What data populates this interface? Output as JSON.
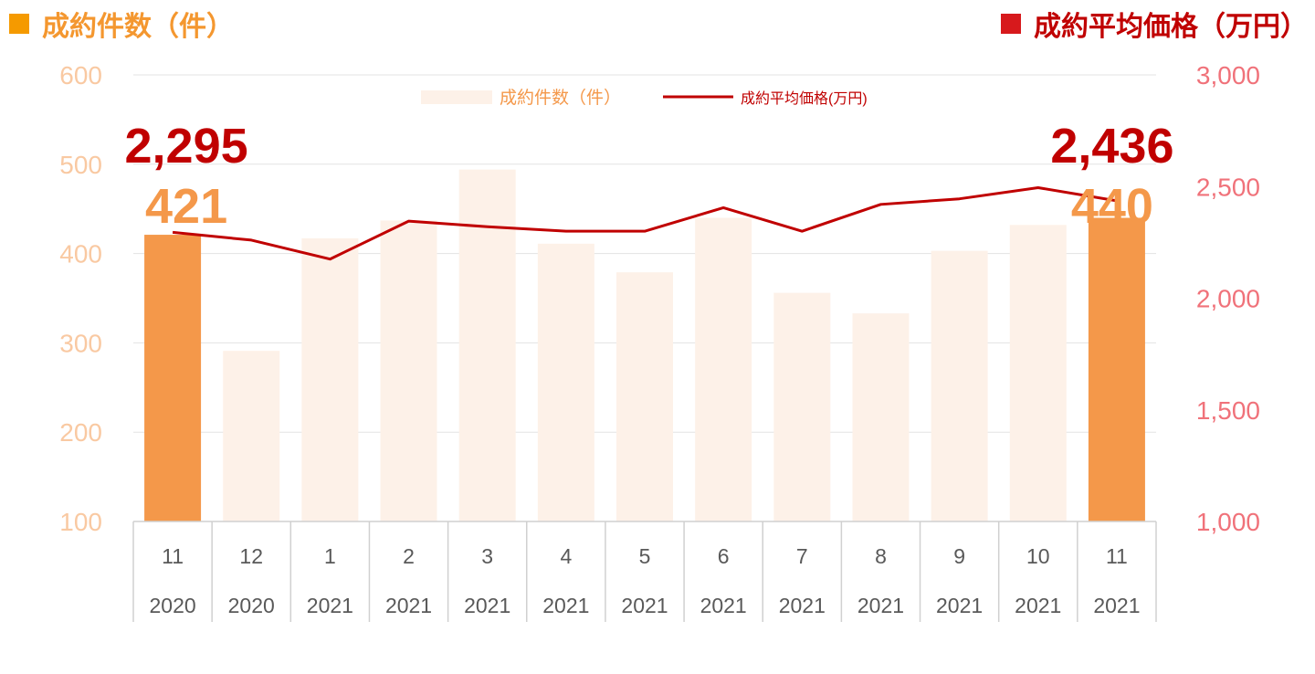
{
  "header": {
    "left_title": "成約件数（件）",
    "right_title": "成約平均価格（万円）"
  },
  "legend": {
    "bar_label": "成約件数（件）",
    "line_label": "成約平均価格(万円)"
  },
  "colors": {
    "highlight_bar": "#F4984A",
    "faded_bar": "#FDF1E8",
    "line": "#C00000",
    "left_axis": "#F9C9A2",
    "right_axis": "#F0727A",
    "highlight_count_label": "#F4984A",
    "highlight_price_label": "#C00000",
    "legend_bar_text": "#F4984A",
    "legend_line_text": "#C00000"
  },
  "chart_data": {
    "type": "bar",
    "categories": [
      [
        "11",
        "2020"
      ],
      [
        "12",
        "2020"
      ],
      [
        "1",
        "2021"
      ],
      [
        "2",
        "2021"
      ],
      [
        "3",
        "2021"
      ],
      [
        "4",
        "2021"
      ],
      [
        "5",
        "2021"
      ],
      [
        "6",
        "2021"
      ],
      [
        "7",
        "2021"
      ],
      [
        "8",
        "2021"
      ],
      [
        "9",
        "2021"
      ],
      [
        "10",
        "2021"
      ],
      [
        "11",
        "2021"
      ]
    ],
    "series": [
      {
        "name": "成約件数（件）",
        "type": "bar",
        "axis": "left",
        "values": [
          421,
          291,
          417,
          437,
          494,
          411,
          379,
          440,
          356,
          333,
          403,
          432,
          440
        ]
      },
      {
        "name": "成約平均価格(万円)",
        "type": "line",
        "axis": "right",
        "values": [
          2295,
          2260,
          2175,
          2345,
          2320,
          2300,
          2300,
          2405,
          2300,
          2420,
          2445,
          2495,
          2436
        ]
      }
    ],
    "highlighted_indices": [
      0,
      12
    ],
    "data_labels": [
      {
        "index": 0,
        "count": "421",
        "price": "2,295"
      },
      {
        "index": 12,
        "count": "440",
        "price": "2,436"
      }
    ],
    "left_axis": {
      "ylim": [
        100,
        600
      ],
      "ticks": [
        "100",
        "200",
        "300",
        "400",
        "500",
        "600"
      ]
    },
    "right_axis": {
      "ylim": [
        1000,
        3000
      ],
      "ticks": [
        "1,000",
        "1,500",
        "2,000",
        "2,500",
        "3,000"
      ]
    },
    "grid": true,
    "legend_position": "top-center"
  }
}
